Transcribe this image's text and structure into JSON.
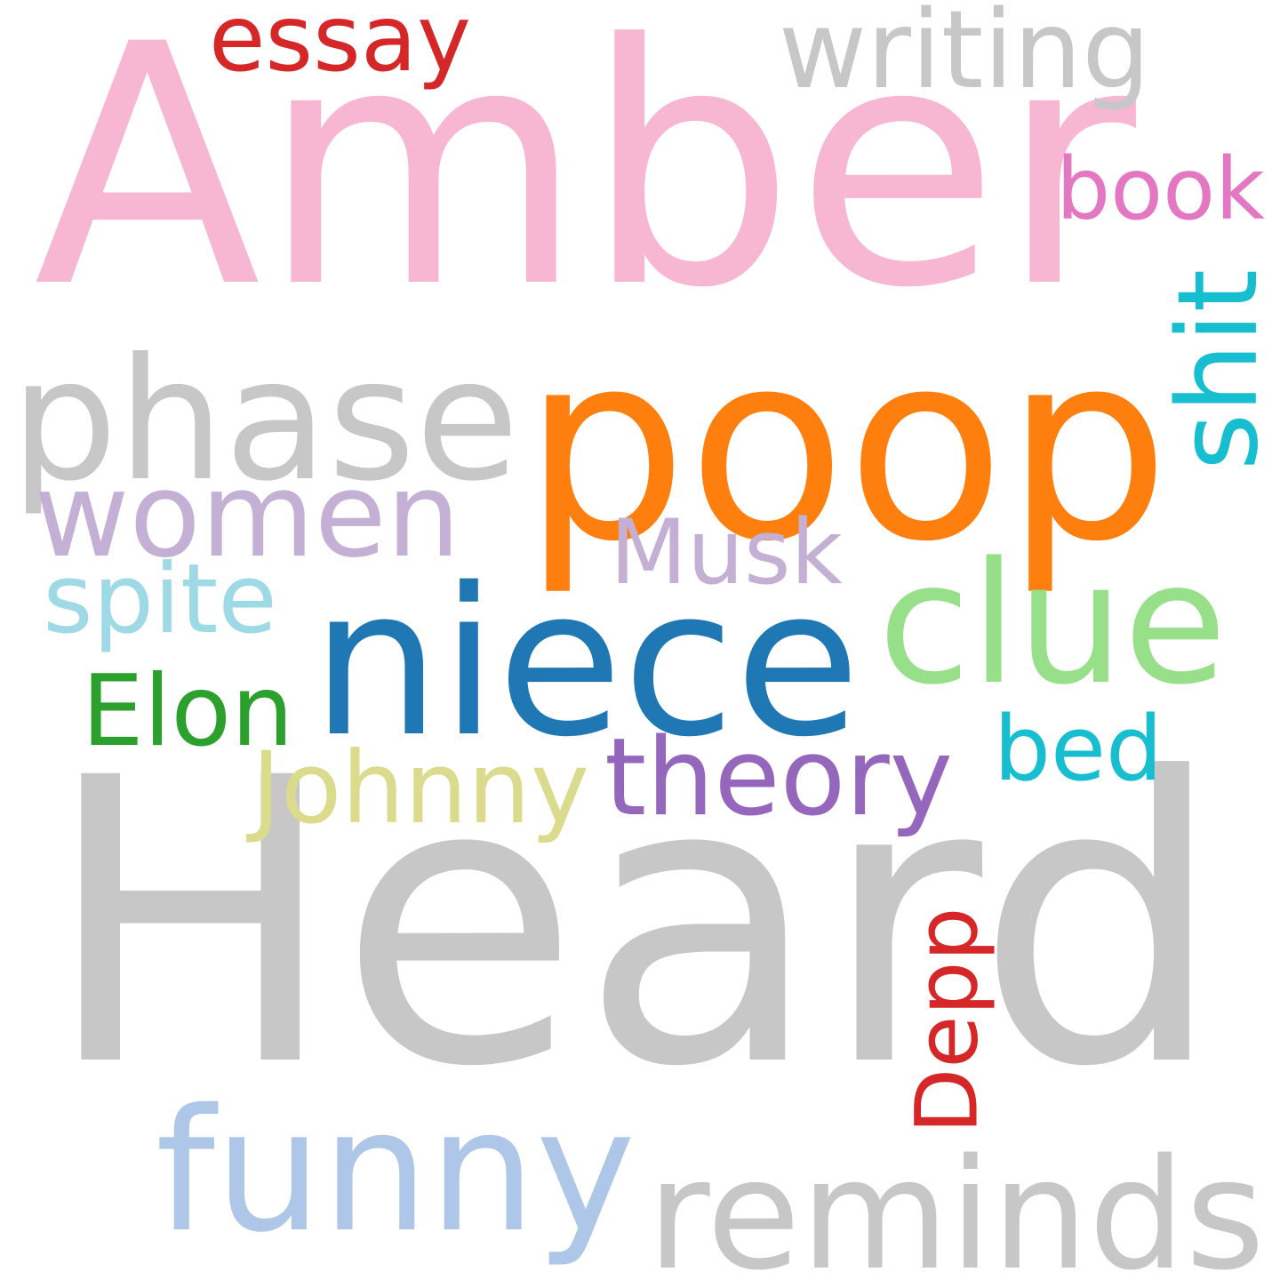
{
  "words": [
    {
      "key": "amber",
      "text": "Amber",
      "color": "#f7b6d2"
    },
    {
      "key": "heard",
      "text": "Heard",
      "color": "#c7c7c7"
    },
    {
      "key": "poop",
      "text": "poop",
      "color": "#ff7f0e"
    },
    {
      "key": "phase",
      "text": "phase",
      "color": "#c7c7c7"
    },
    {
      "key": "niece",
      "text": "niece",
      "color": "#1f77b4"
    },
    {
      "key": "funny",
      "text": "funny",
      "color": "#aec7e8"
    },
    {
      "key": "reminds",
      "text": "reminds",
      "color": "#c7c7c7"
    },
    {
      "key": "clue",
      "text": "clue",
      "color": "#98df8a"
    },
    {
      "key": "women",
      "text": "women",
      "color": "#c5b0d5"
    },
    {
      "key": "writing",
      "text": "writing",
      "color": "#c7c7c7"
    },
    {
      "key": "theory",
      "text": "theory",
      "color": "#9467bd"
    },
    {
      "key": "johnny",
      "text": "Johnny",
      "color": "#dbdb8d"
    },
    {
      "key": "essay",
      "text": "essay",
      "color": "#d62728"
    },
    {
      "key": "depp",
      "text": "Depp",
      "color": "#d62728"
    },
    {
      "key": "elon",
      "text": "Elon",
      "color": "#2ca02c"
    },
    {
      "key": "musk",
      "text": "Musk",
      "color": "#c5b0d5"
    },
    {
      "key": "shit",
      "text": "shit",
      "color": "#17becf"
    },
    {
      "key": "spite",
      "text": "spite",
      "color": "#9edae5"
    },
    {
      "key": "book",
      "text": "book",
      "color": "#e377c2"
    },
    {
      "key": "bed",
      "text": "bed",
      "color": "#17becf"
    }
  ]
}
